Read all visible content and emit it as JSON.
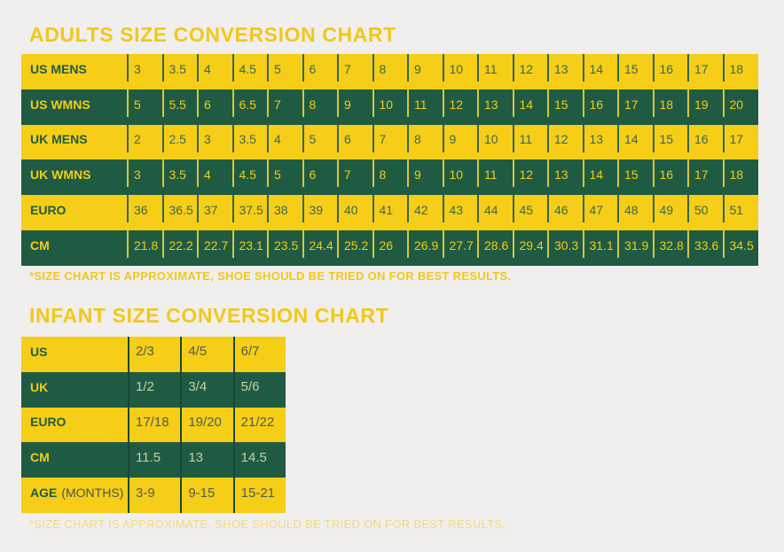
{
  "colors": {
    "background": "#F0EFED",
    "brand_yellow": "#F6CE17",
    "brand_green": "#1F5B43",
    "title_gold": "#F2C818",
    "faded_footnote": "#F2D97E"
  },
  "adults": {
    "title": "ADULTS SIZE CONVERSION CHART",
    "footnote": "*SIZE CHART IS APPROXIMATE, SHOE SHOULD BE TRIED ON FOR BEST RESULTS.",
    "rows": [
      {
        "label": "US MENS",
        "values": [
          "3",
          "3.5",
          "4",
          "4.5",
          "5",
          "6",
          "7",
          "8",
          "9",
          "10",
          "11",
          "12",
          "13",
          "14",
          "15",
          "16",
          "17",
          "18"
        ]
      },
      {
        "label": "US WMNS",
        "values": [
          "5",
          "5.5",
          "6",
          "6.5",
          "7",
          "8",
          "9",
          "10",
          "11",
          "12",
          "13",
          "14",
          "15",
          "16",
          "17",
          "18",
          "19",
          "20"
        ]
      },
      {
        "label": "UK MENS",
        "values": [
          "2",
          "2.5",
          "3",
          "3.5",
          "4",
          "5",
          "6",
          "7",
          "8",
          "9",
          "10",
          "11",
          "12",
          "13",
          "14",
          "15",
          "16",
          "17"
        ]
      },
      {
        "label": "UK WMNS",
        "values": [
          "3",
          "3.5",
          "4",
          "4.5",
          "5",
          "6",
          "7",
          "8",
          "9",
          "10",
          "11",
          "12",
          "13",
          "14",
          "15",
          "16",
          "17",
          "18"
        ]
      },
      {
        "label": "EURO",
        "values": [
          "36",
          "36.5",
          "37",
          "37.5",
          "38",
          "39",
          "40",
          "41",
          "42",
          "43",
          "44",
          "45",
          "46",
          "47",
          "48",
          "49",
          "50",
          "51"
        ]
      },
      {
        "label": "CM",
        "values": [
          "21.8",
          "22.2",
          "22.7",
          "23.1",
          "23.5",
          "24.4",
          "25.2",
          "26",
          "26.9",
          "27.7",
          "28.6",
          "29.4",
          "30.3",
          "31.1",
          "31.9",
          "32.8",
          "33.6",
          "34.5"
        ]
      }
    ]
  },
  "infant": {
    "title": "INFANT SIZE CONVERSION CHART",
    "footnote": "*SIZE CHART IS APPROXIMATE, SHOE SHOULD BE TRIED ON FOR BEST RESULTS.",
    "rows": [
      {
        "label": "US",
        "label_suffix": "",
        "values": [
          "2/3",
          "4/5",
          "6/7"
        ]
      },
      {
        "label": "UK",
        "label_suffix": "",
        "values": [
          "1/2",
          "3/4",
          "5/6"
        ]
      },
      {
        "label": "EURO",
        "label_suffix": "",
        "values": [
          "17/18",
          "19/20",
          "21/22"
        ]
      },
      {
        "label": "CM",
        "label_suffix": "",
        "values": [
          "11.5",
          "13",
          "14.5"
        ]
      },
      {
        "label": "AGE",
        "label_suffix": "(MONTHS)",
        "values": [
          "3-9",
          "9-15",
          "15-21"
        ]
      }
    ]
  }
}
